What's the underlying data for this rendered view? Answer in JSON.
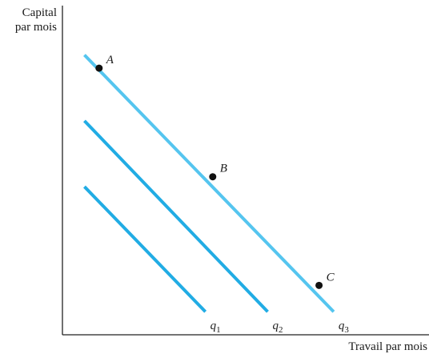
{
  "chart_data": {
    "type": "line",
    "title": "",
    "xlabel": "Travail par mois",
    "ylabel_lines": [
      "Capital",
      "par mois"
    ],
    "xlim": [
      0,
      10
    ],
    "ylim": [
      0,
      10
    ],
    "grid": false,
    "legend": "none",
    "series": [
      {
        "name": "q1",
        "color": "#21ace4",
        "x": [
          0.6,
          3.9
        ],
        "y": [
          4.5,
          0.7
        ]
      },
      {
        "name": "q2",
        "color": "#21ace4",
        "x": [
          0.6,
          5.6
        ],
        "y": [
          6.5,
          0.7
        ]
      },
      {
        "name": "q3",
        "color": "#55c5ef",
        "x": [
          0.6,
          7.4
        ],
        "y": [
          8.5,
          0.7
        ]
      }
    ],
    "points": [
      {
        "label": "A",
        "x": 1.0,
        "y": 8.1
      },
      {
        "label": "B",
        "x": 4.1,
        "y": 4.8
      },
      {
        "label": "C",
        "x": 7.0,
        "y": 1.5
      }
    ]
  }
}
